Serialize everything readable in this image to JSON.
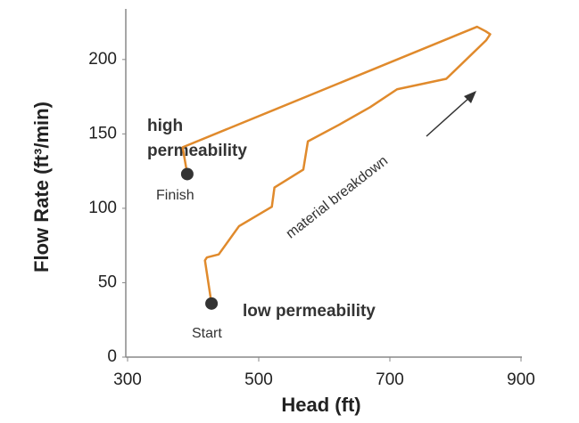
{
  "chart_data": {
    "type": "line",
    "x_label": "Head (ft)",
    "y_label": "Flow Rate (ft³/min)",
    "xlim": [
      300,
      900
    ],
    "xticks": [
      300,
      500,
      700,
      900
    ],
    "ylim": [
      0,
      234
    ],
    "yticks": [
      0,
      50,
      100,
      150,
      200
    ],
    "series": [
      {
        "name": "flow",
        "color": "#e08a2c",
        "x": [
          428,
          418,
          421,
          439,
          470,
          520,
          524,
          568,
          575,
          622,
          670,
          711,
          786,
          847,
          853,
          846,
          833,
          384,
          391
        ],
        "values": [
          36,
          65,
          67,
          69,
          88,
          101,
          114,
          126,
          145,
          156,
          168,
          180,
          187,
          213,
          217,
          219,
          222,
          141,
          123
        ]
      }
    ],
    "annotations": {
      "start": "Start",
      "finish": "Finish",
      "high": [
        "high",
        "permeability"
      ],
      "low": "low permeability",
      "breakdown": "material breakdown"
    }
  }
}
